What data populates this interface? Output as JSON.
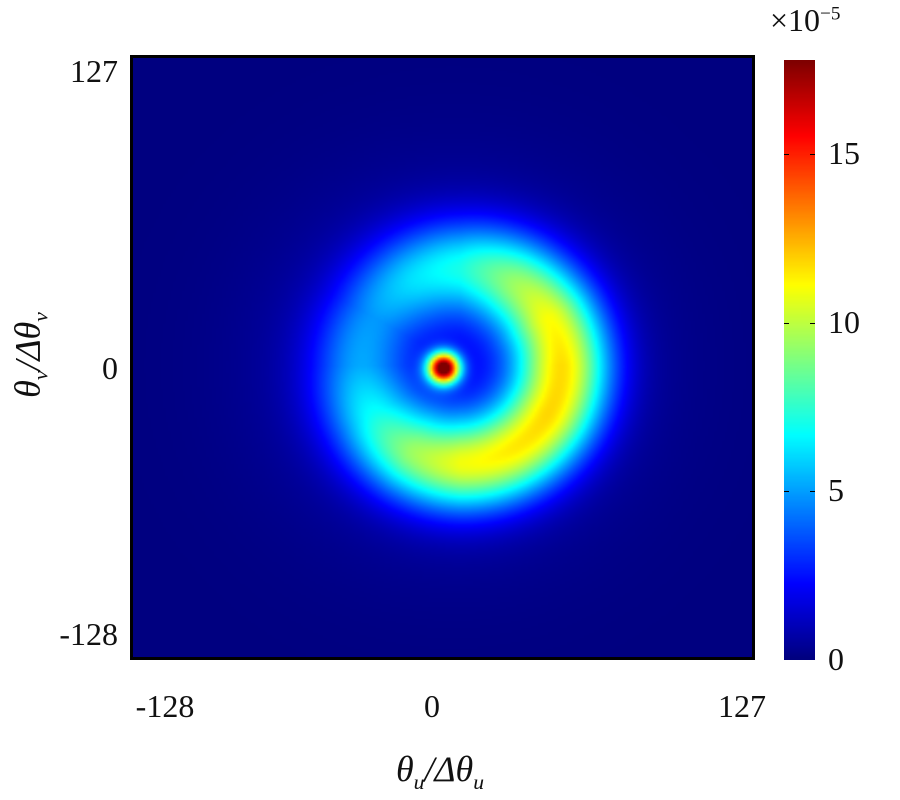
{
  "chart_data": {
    "type": "heatmap",
    "title": "",
    "xlabel": {
      "main": "θ",
      "sub": "u",
      "sep": "/Δθ",
      "sub2": "u"
    },
    "ylabel": {
      "main": "θ",
      "sub": "v",
      "sep": "/Δθ",
      "sub2": "v"
    },
    "xlim": [
      -128,
      127
    ],
    "ylim": [
      -128,
      127
    ],
    "x_ticks": [
      "-128",
      "0",
      "127"
    ],
    "y_ticks": [
      "127",
      "0",
      "-128"
    ],
    "colormap": "jet",
    "colorbar": {
      "range": [
        0,
        17.8
      ],
      "ticks": [
        "0",
        "5",
        "10",
        "15"
      ],
      "tick_values": [
        0,
        5,
        10,
        15
      ],
      "multiplier": {
        "base": "×10",
        "exponent": "−5"
      }
    },
    "components": {
      "central_spot": {
        "center": [
          0,
          -5
        ],
        "sigma": 4.5,
        "peak": 17.8
      },
      "halo": {
        "center": [
          4,
          -4
        ],
        "sigma": 45,
        "peak": 2.0
      },
      "ring": {
        "center": [
          7,
          -4
        ],
        "radius": 42,
        "sigma": 14,
        "angles_deg": [
          0,
          30,
          60,
          90,
          120,
          150,
          180,
          210,
          240,
          270,
          300,
          330
        ],
        "peak_by_angle": [
          10.5,
          9.8,
          8.0,
          5.8,
          4.8,
          3.5,
          3.8,
          5.5,
          8.0,
          9.6,
          10.2,
          10.6
        ]
      }
    }
  }
}
